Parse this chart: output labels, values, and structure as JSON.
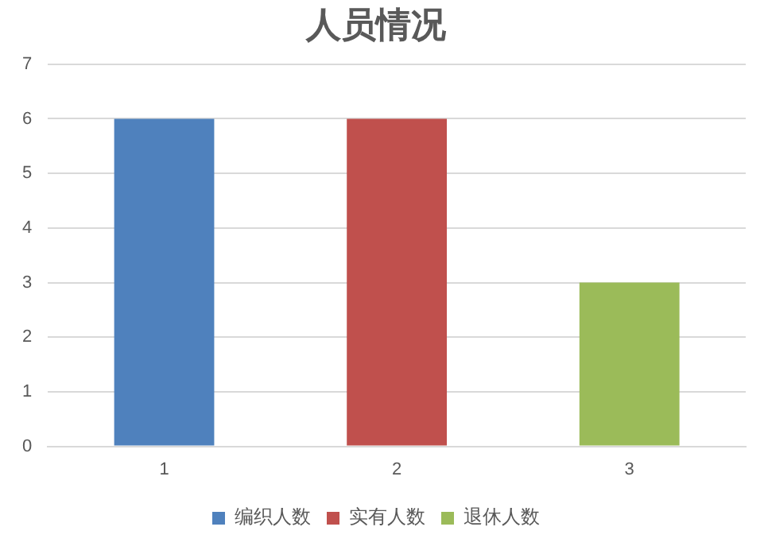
{
  "chart_data": {
    "type": "bar",
    "title": "人员情况",
    "categories": [
      "1",
      "2",
      "3"
    ],
    "stacked": true,
    "series": [
      {
        "name": "编织人数",
        "color": "#4f81bd",
        "values": [
          6,
          null,
          null
        ]
      },
      {
        "name": "实有人数",
        "color": "#c0504d",
        "values": [
          null,
          6,
          null
        ]
      },
      {
        "name": "退休人数",
        "color": "#9bbb59",
        "values": [
          null,
          null,
          3
        ]
      }
    ],
    "ylim": [
      0,
      7
    ],
    "yticks": [
      0,
      1,
      2,
      3,
      4,
      5,
      6,
      7
    ],
    "grid": "y",
    "legend": "bottom"
  }
}
